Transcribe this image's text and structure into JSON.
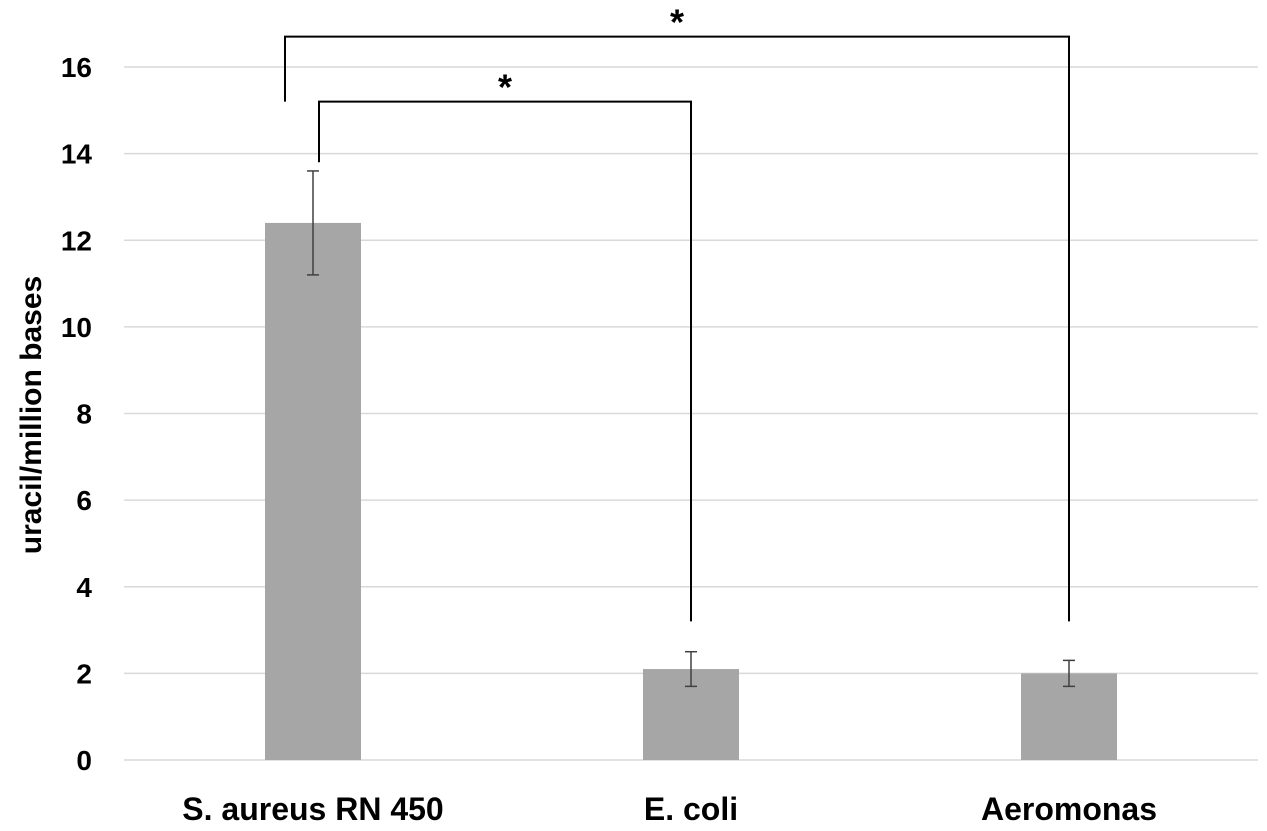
{
  "chart_data": {
    "type": "bar",
    "title": "",
    "xlabel": "",
    "ylabel": "uracil/million bases",
    "categories": [
      "S. aureus RN 450",
      "E. coli",
      "Aeromonas"
    ],
    "series": [
      {
        "values": [
          12.4,
          2.1,
          2.0
        ],
        "errors": [
          1.2,
          0.4,
          0.3
        ],
        "color": "#a6a6a6"
      }
    ],
    "ylim": [
      0,
      16
    ],
    "yticks": [
      "0",
      "2",
      "4",
      "6",
      "8",
      "10",
      "12",
      "14",
      "16"
    ],
    "grid": true,
    "legend": "none",
    "significance": [
      {
        "from": 0,
        "to": 1,
        "label": "*",
        "y_bar": 15.2,
        "y_from_end": 13.8,
        "y_to_end": 3.2
      },
      {
        "from": 0,
        "to": 2,
        "label": "*",
        "y_bar": 16.7,
        "y_from_end": 15.2,
        "y_to_end": 3.2
      }
    ],
    "colors": {
      "gridline": "#d9d9d9",
      "bracket": "#000000",
      "errorbar": "#404040"
    }
  }
}
